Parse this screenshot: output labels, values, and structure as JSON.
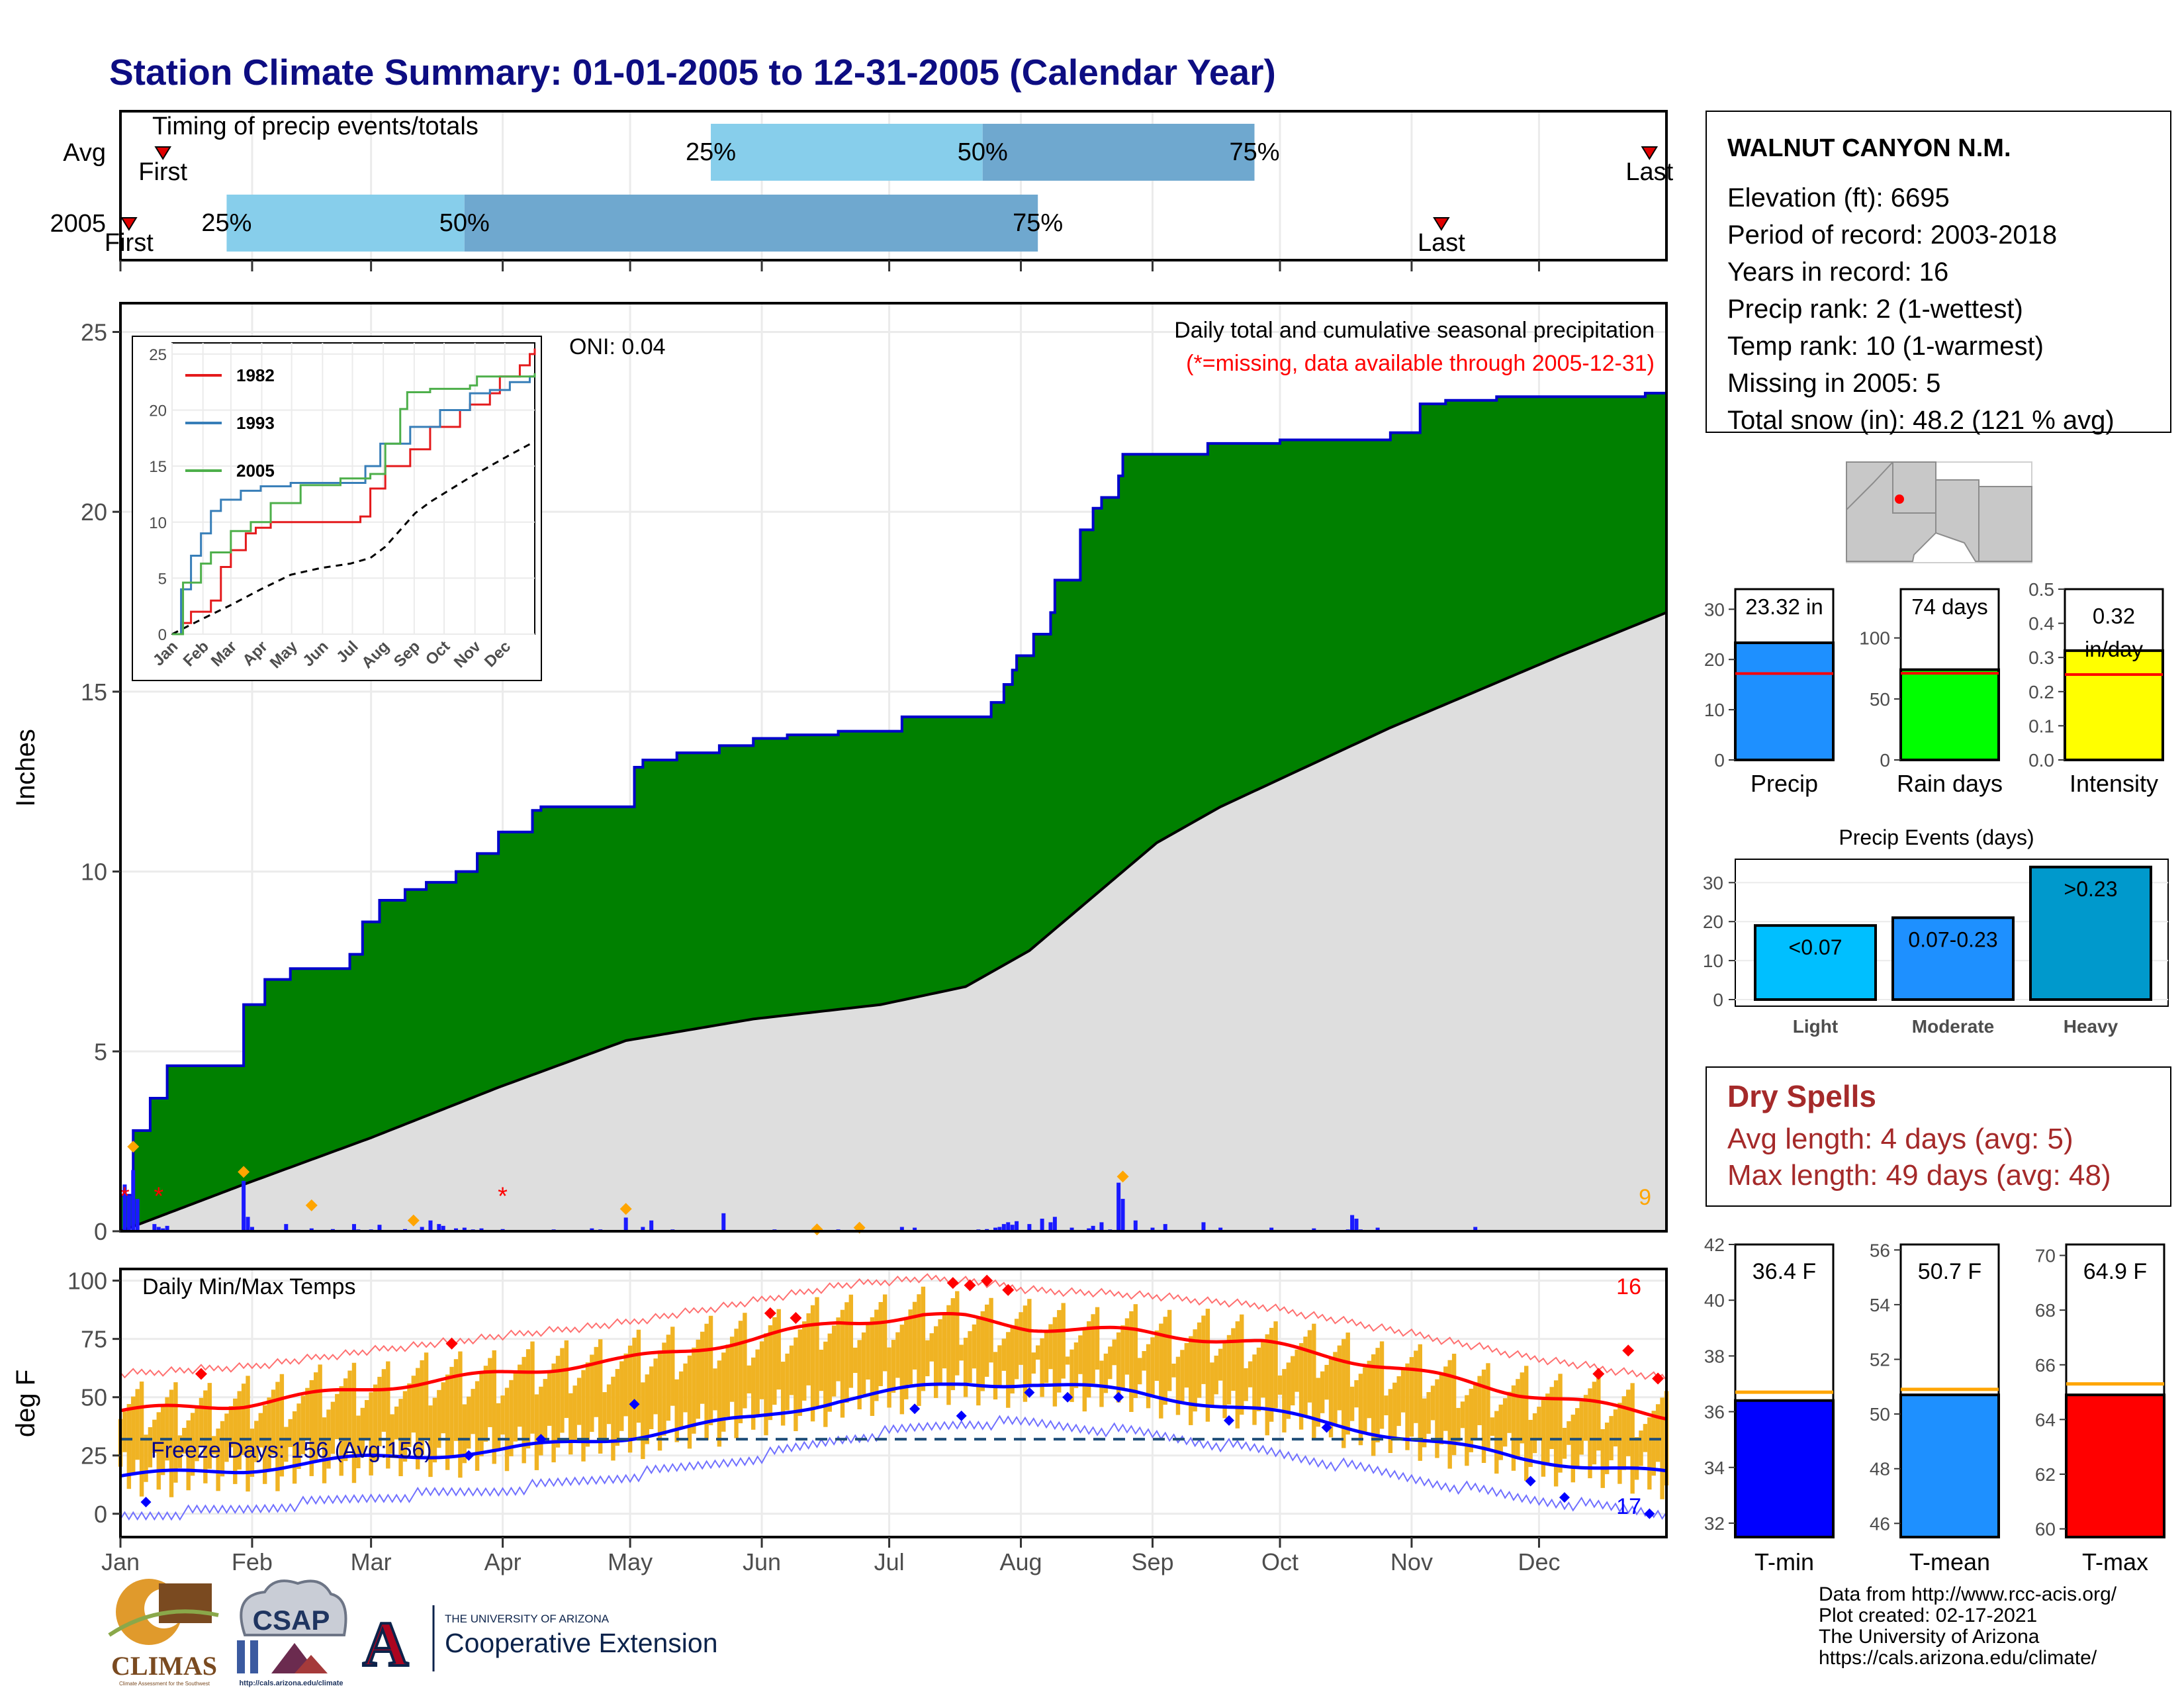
{
  "title": "Station Climate Summary: 01-01-2005 to 12-31-2005 (Calendar Year)",
  "colors": {
    "title": "#0d0d82",
    "cumulative_2005": "#008000",
    "cumulative_avg": "#dedede",
    "precip_bar": "#1a1aff",
    "temp_bar": "#f0b323",
    "tmax_line": "#ff0000",
    "tmin_line": "#0000ff",
    "quartile_light": "#87ceeb",
    "quartile_dark": "#6fa8cf",
    "dry_spells": "#a52a2a"
  },
  "timing": {
    "title": "Timing of precip events/totals",
    "rows": [
      {
        "label": "Avg",
        "first_label": "First",
        "last_label": "Last",
        "first_day": 11,
        "last_day": 361,
        "q25_day": 140,
        "q50_day": 204,
        "q75_day": 268,
        "q25_label": "25%",
        "q50_label": "50%",
        "q75_label": "75%"
      },
      {
        "label": "2005",
        "first_label": "First",
        "last_label": "Last",
        "first_day": 3,
        "last_day": 312,
        "q25_day": 26,
        "q50_day": 82,
        "q75_day": 217,
        "q25_label": "25%",
        "q50_label": "50%",
        "q75_label": "75%"
      }
    ]
  },
  "precip_panel": {
    "ylabel": "Inches",
    "title": "Daily total and cumulative seasonal precipitation",
    "missing_note": "(*=missing, data available through 2005-12-31)",
    "oni": "ONI: 0.04",
    "corner_value": "9"
  },
  "inset": {
    "series": [
      {
        "name": "1982",
        "color": "#e41a1c"
      },
      {
        "name": "1993",
        "color": "#377eb8"
      },
      {
        "name": "2005",
        "color": "#4daf4a"
      }
    ],
    "yticks": [
      "0",
      "5",
      "10",
      "15",
      "20",
      "25"
    ],
    "xticks": [
      "Jan",
      "Feb",
      "Mar",
      "Apr",
      "May",
      "Jun",
      "Jul",
      "Aug",
      "Sep",
      "Oct",
      "Nov",
      "Dec"
    ]
  },
  "temp_panel": {
    "ylabel": "deg F",
    "title": "Daily Min/Max Temps",
    "freeze_text": "Freeze Days: 156 (Avg:156)",
    "count_high": "16",
    "count_low": "17",
    "freeze_line": 32
  },
  "months": [
    "Jan",
    "Feb",
    "Mar",
    "Apr",
    "May",
    "Jun",
    "Jul",
    "Aug",
    "Sep",
    "Oct",
    "Nov",
    "Dec"
  ],
  "info": {
    "station": "WALNUT CANYON N.M.",
    "lines": [
      "Elevation (ft): 6695",
      "Period of record: 2003-2018",
      "Years in record: 16",
      "Precip rank: 2 (1-wettest)",
      "Temp rank: 10 (1-warmest)",
      "Missing in 2005: 5",
      "Total snow (in): 48.2 (121 % avg)"
    ]
  },
  "stats": {
    "precip": {
      "label": "Precip",
      "value_text": "23.32 in",
      "value": 23.32,
      "avg": 17.2,
      "yticks": [
        "0",
        "10",
        "20",
        "30"
      ],
      "color": "#1e90ff"
    },
    "rain_days": {
      "label": "Rain days",
      "value_text": "74 days",
      "value": 74,
      "avg": 71,
      "yticks": [
        "0",
        "50",
        "100"
      ],
      "color": "#00ff00"
    },
    "intensity": {
      "label": "Intensity",
      "value_text": "0.32",
      "unit_text": "in/day",
      "value": 0.32,
      "avg": 0.25,
      "yticks": [
        "0.0",
        "0.1",
        "0.2",
        "0.3",
        "0.4",
        "0.5"
      ],
      "color": "#ffff00"
    }
  },
  "events": {
    "title": "Precip Events (days)",
    "yticks": [
      "0",
      "10",
      "20",
      "30"
    ],
    "bars": [
      {
        "category": "Light",
        "label": "<0.07",
        "value": 19,
        "color": "#00bfff"
      },
      {
        "category": "Moderate",
        "label": "0.07-0.23",
        "value": 21,
        "color": "#1e90ff"
      },
      {
        "category": "Heavy",
        "label": ">0.23",
        "value": 34,
        "color": "#0099cc"
      }
    ]
  },
  "dry_spells": {
    "title": "Dry Spells",
    "avg_line": "Avg length: 4 days (avg: 5)",
    "max_line": "Max length: 49 days (avg: 48)"
  },
  "temp_stats": {
    "tmin": {
      "label": "T-min",
      "value_text": "36.4 F",
      "value": 36.4,
      "avg": 36.7,
      "yticks": [
        "32",
        "34",
        "36",
        "38",
        "40",
        "42"
      ],
      "ymin": 31.5,
      "ymax": 42,
      "color": "#0000ff"
    },
    "tmean": {
      "label": "T-mean",
      "value_text": "50.7 F",
      "value": 50.7,
      "avg": 50.9,
      "yticks": [
        "46",
        "48",
        "50",
        "52",
        "54",
        "56"
      ],
      "ymin": 45.5,
      "ymax": 56.2,
      "color": "#1e90ff"
    },
    "tmax": {
      "label": "T-max",
      "value_text": "64.9 F",
      "value": 64.9,
      "avg": 65.3,
      "yticks": [
        "60",
        "62",
        "64",
        "66",
        "68",
        "70"
      ],
      "ymin": 59.7,
      "ymax": 70.4,
      "color": "#ff0000"
    }
  },
  "logos": {
    "climas": "CLIMAS",
    "climas_sub": "Climate Assessment for the Southwest",
    "csap": "CSAP",
    "csap_url": "http://cals.arizona.edu/climate",
    "ua_mark": "A",
    "ua_small": "THE UNIVERSITY OF ARIZONA",
    "ua_big": "Cooperative Extension"
  },
  "footer": [
    "Data from http://www.rcc-acis.org/",
    "Plot created: 02-17-2021",
    "The University of Arizona",
    "https://cals.arizona.edu/climate/"
  ],
  "chart_data": [
    {
      "type": "area",
      "title": "Daily total and cumulative seasonal precipitation",
      "ylabel": "Inches",
      "ylim": [
        0,
        25.8
      ],
      "x_unit": "day of year",
      "series": [
        {
          "name": "2005 cumulative",
          "x": [
            1,
            4,
            8,
            12,
            30,
            35,
            41,
            55,
            58,
            62,
            68,
            73,
            80,
            85,
            90,
            98,
            100,
            110,
            122,
            124,
            132,
            142,
            150,
            158,
            170,
            185,
            203,
            206,
            209,
            211,
            212,
            216,
            220,
            221,
            227,
            230,
            232,
            236,
            237,
            257,
            260,
            274,
            288,
            300,
            306,
            307,
            313,
            325,
            360,
            365
          ],
          "values": [
            1.0,
            2.8,
            3.7,
            4.6,
            6.3,
            7.0,
            7.3,
            7.7,
            8.6,
            9.2,
            9.5,
            9.7,
            10.0,
            10.5,
            11.1,
            11.7,
            11.8,
            11.8,
            12.9,
            13.1,
            13.3,
            13.5,
            13.7,
            13.8,
            13.9,
            14.3,
            14.3,
            14.7,
            15.2,
            15.6,
            16.0,
            16.6,
            17.2,
            18.1,
            19.5,
            20.1,
            20.4,
            21.0,
            21.6,
            21.9,
            21.9,
            22.0,
            22.0,
            22.2,
            22.2,
            23.0,
            23.1,
            23.2,
            23.3,
            23.32
          ]
        },
        {
          "name": "Average cumulative",
          "x": [
            1,
            30,
            60,
            90,
            120,
            150,
            180,
            200,
            215,
            230,
            245,
            260,
            280,
            300,
            320,
            340,
            365
          ],
          "values": [
            0.0,
            1.3,
            2.6,
            4.0,
            5.3,
            5.9,
            6.3,
            6.8,
            7.8,
            9.3,
            10.8,
            11.8,
            12.9,
            14.0,
            15.0,
            16.0,
            17.2
          ]
        }
      ],
      "daily_precip": {
        "x": [
          2,
          3,
          4,
          5,
          9,
          10,
          11,
          12,
          30,
          31,
          32,
          40,
          46,
          51,
          56,
          57,
          60,
          62,
          68,
          72,
          74,
          76,
          77,
          80,
          82,
          84,
          86,
          91,
          103,
          112,
          114,
          120,
          124,
          126,
          131,
          143,
          155,
          170,
          185,
          188,
          203,
          205,
          207,
          208,
          209,
          210,
          211,
          212,
          215,
          218,
          220,
          221,
          225,
          229,
          230,
          232,
          234,
          236,
          237,
          240,
          244,
          247,
          256,
          260,
          272,
          282,
          290,
          291,
          292,
          293,
          297,
          320
        ],
        "values": [
          1.3,
          1.0,
          1.7,
          0.9,
          0.2,
          0.12,
          0.08,
          0.15,
          1.4,
          0.4,
          0.12,
          0.2,
          0.08,
          0.06,
          0.2,
          0.05,
          0.05,
          0.18,
          0.06,
          0.12,
          0.3,
          0.2,
          0.15,
          0.08,
          0.1,
          0.05,
          0.08,
          0.06,
          0.05,
          0.08,
          0.05,
          0.38,
          0.12,
          0.3,
          0.05,
          0.5,
          0.05,
          0.05,
          0.12,
          0.1,
          0.05,
          0.06,
          0.1,
          0.12,
          0.2,
          0.25,
          0.18,
          0.28,
          0.2,
          0.35,
          0.25,
          0.4,
          0.1,
          0.08,
          0.15,
          0.25,
          0.05,
          1.35,
          0.9,
          0.3,
          0.1,
          0.2,
          0.25,
          0.1,
          0.1,
          0.08,
          0.05,
          0.45,
          0.35,
          0.05,
          0.1,
          0.12
        ]
      }
    },
    {
      "type": "line",
      "title": "Daily Min/Max Temps",
      "ylabel": "deg F",
      "ylim": [
        -10,
        105
      ],
      "series": [
        {
          "name": "Tmax average",
          "x": [
            1,
            30,
            60,
            90,
            120,
            150,
            170,
            190,
            200,
            215,
            240,
            270,
            300,
            330,
            365
          ],
          "values": [
            44,
            47,
            54,
            60,
            66,
            75,
            82,
            85,
            84,
            80,
            78,
            73,
            63,
            52,
            42
          ]
        },
        {
          "name": "Tmin average",
          "x": [
            1,
            30,
            60,
            90,
            120,
            150,
            170,
            190,
            200,
            215,
            240,
            270,
            300,
            330,
            365
          ],
          "values": [
            16,
            19,
            24,
            27,
            33,
            41,
            49,
            54,
            56,
            56,
            52,
            44,
            34,
            24,
            17
          ]
        }
      ]
    },
    {
      "type": "bar",
      "title": "Precip Events (days)",
      "categories": [
        "Light",
        "Moderate",
        "Heavy"
      ],
      "values": [
        19,
        21,
        34
      ],
      "ylim": [
        0,
        36
      ]
    }
  ]
}
